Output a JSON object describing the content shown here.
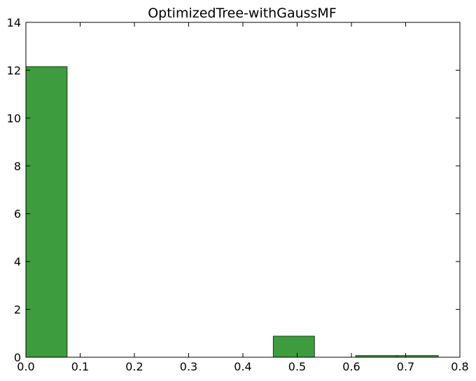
{
  "chart_data": {
    "type": "bar",
    "title": "OptimizedTree-withGaussMF",
    "xlabel": "",
    "ylabel": "",
    "xlim": [
      0.0,
      0.8
    ],
    "ylim": [
      0,
      14
    ],
    "xticks": [
      "0.0",
      "0.1",
      "0.2",
      "0.3",
      "0.4",
      "0.5",
      "0.6",
      "0.7",
      "0.8"
    ],
    "yticks": [
      "0",
      "2",
      "4",
      "6",
      "8",
      "10",
      "12",
      "14"
    ],
    "bar_color": "#3d9c3d",
    "bar_edge_color": "#1a3d1a",
    "bins": [
      {
        "x0": 0.0,
        "x1": 0.076,
        "value": 12.15
      },
      {
        "x0": 0.076,
        "x1": 0.152,
        "value": 0
      },
      {
        "x0": 0.152,
        "x1": 0.228,
        "value": 0
      },
      {
        "x0": 0.228,
        "x1": 0.304,
        "value": 0
      },
      {
        "x0": 0.304,
        "x1": 0.38,
        "value": 0
      },
      {
        "x0": 0.456,
        "x1": 0.532,
        "value": 0.88
      },
      {
        "x0": 0.608,
        "x1": 0.684,
        "value": 0.07
      },
      {
        "x0": 0.684,
        "x1": 0.76,
        "value": 0.07
      }
    ],
    "grid": false,
    "legend": "none"
  }
}
